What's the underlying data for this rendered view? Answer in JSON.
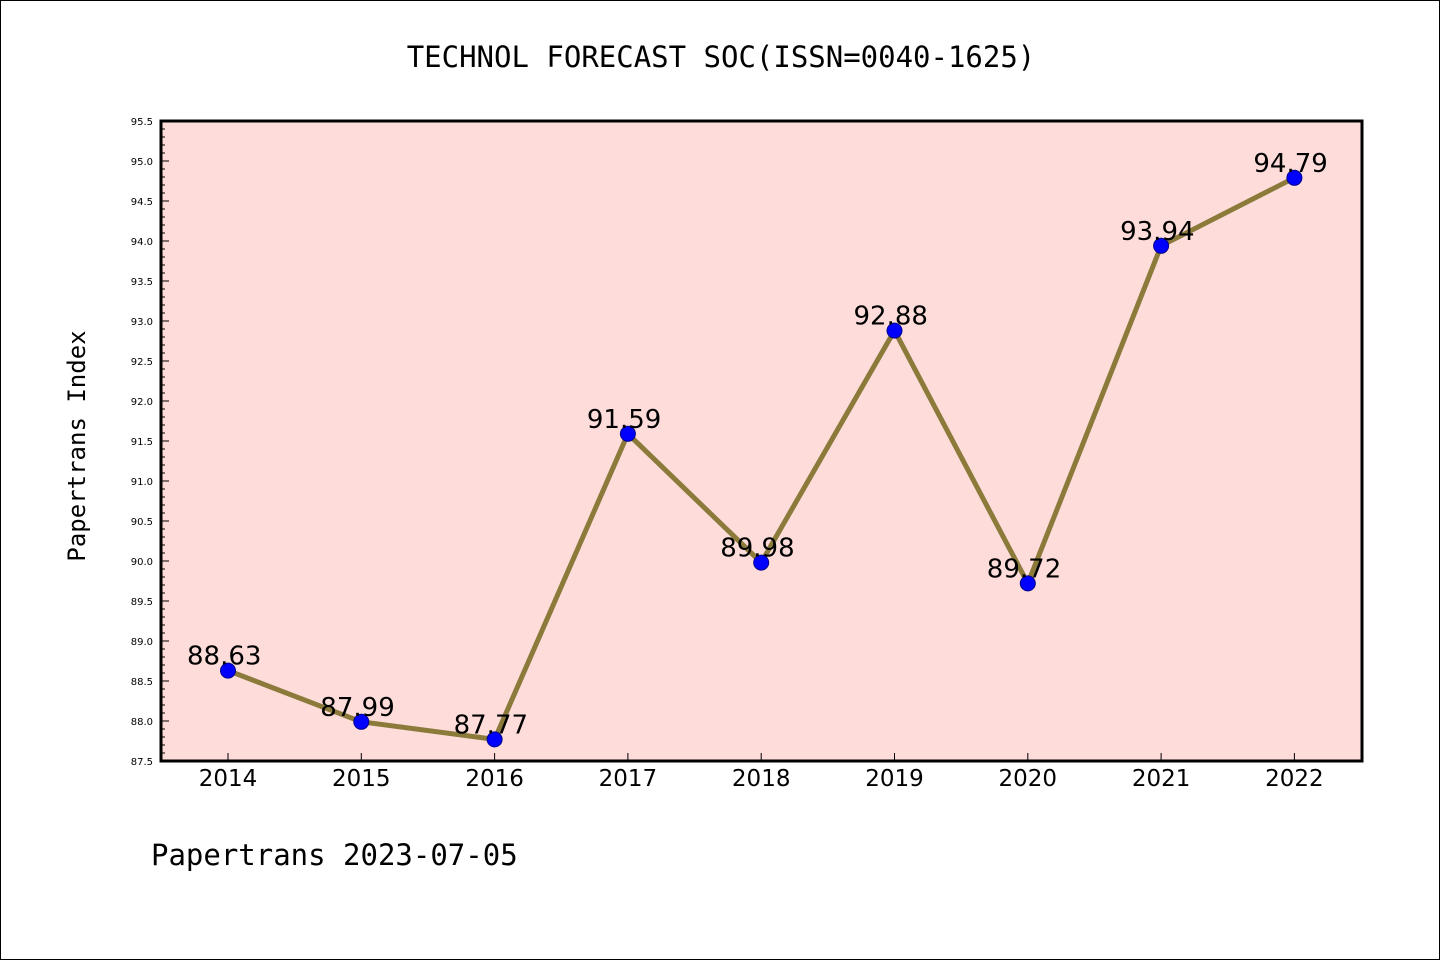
{
  "chart_data": {
    "type": "line",
    "title": "TECHNOL FORECAST SOC(ISSN=0040-1625)",
    "ylabel": "Papertrans Index",
    "xlabel": "",
    "footer": "Papertrans 2023-07-05",
    "categories": [
      "2014",
      "2015",
      "2016",
      "2017",
      "2018",
      "2019",
      "2020",
      "2021",
      "2022"
    ],
    "series": [
      {
        "values": [
          88.63,
          87.99,
          87.77,
          91.59,
          89.98,
          92.88,
          89.72,
          93.94,
          94.79
        ],
        "labels": [
          "88.63",
          "87.99",
          "87.77",
          "91.59",
          "89.98",
          "92.88",
          "89.72",
          "93.94",
          "94.79"
        ]
      }
    ],
    "ylim": [
      87.5,
      95.5
    ],
    "yticks": [
      "87.5",
      "88.0",
      "88.5",
      "89.0",
      "89.5",
      "90.0",
      "90.5",
      "91.0",
      "91.5",
      "92.0",
      "92.5",
      "93.0",
      "93.5",
      "94.0",
      "94.5",
      "95.0",
      "95.5"
    ],
    "grid": false,
    "legend": "none",
    "colors": {
      "plot_background": "#FDDCDA",
      "line": "#8B7A3A",
      "marker": "#0000FF",
      "marker_edge": "#00008B"
    }
  }
}
